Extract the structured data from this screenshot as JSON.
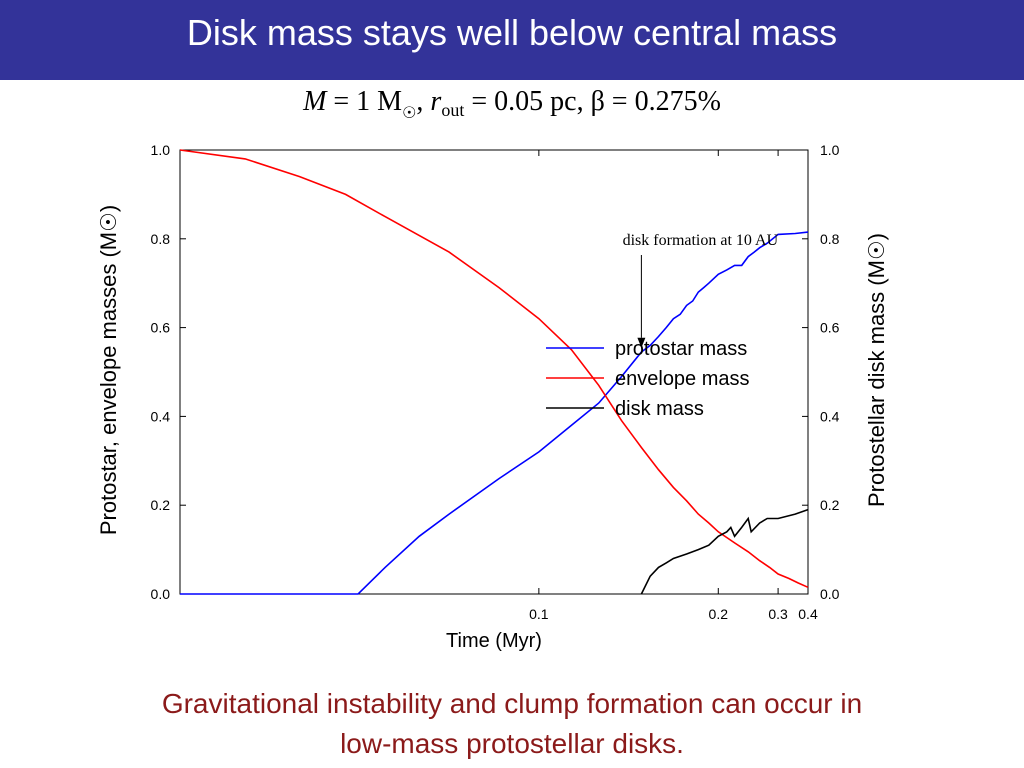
{
  "slide": {
    "title": "Disk mass stays well below central mass",
    "params": {
      "m_symbol": "M",
      "m_equals": " = 1 M",
      "sun_symbol": "☉",
      "r_symbol": "r",
      "r_sub": "out",
      "rest": " = 0.05 pc, β = 0.275%"
    },
    "caption_line1": "Gravitational instability and clump formation can occur in",
    "caption_line2": "low-mass protostellar disks.",
    "colors": {
      "title_bg": "#333399",
      "caption": "#8b1a1a"
    }
  },
  "chart_data": {
    "type": "line",
    "xlabel": "Time (Myr)",
    "ylabel_left": "Protostar, envelope masses (M☉)",
    "ylabel_right": "Protostellar disk mass (M☉)",
    "x_scale": "reciprocal",
    "xlim": [
      0.05,
      0.4
    ],
    "ylim": [
      0.0,
      1.0
    ],
    "x_ticks": [
      0.1,
      0.2,
      0.3,
      0.4
    ],
    "x_tick_labels": [
      "0.1",
      "0.2",
      "0.3",
      "0.4"
    ],
    "y_ticks": [
      0.0,
      0.2,
      0.4,
      0.6,
      0.8,
      1.0
    ],
    "y_tick_labels": [
      "0.0",
      "0.2",
      "0.4",
      "0.6",
      "0.8",
      "1.0"
    ],
    "grid": false,
    "legend_position": "center-right",
    "annotation": {
      "text": "disk formation at 10 AU",
      "x": 0.14,
      "y": 0.55
    },
    "series": [
      {
        "name": "protostar mass",
        "color": "#0000ff",
        "x": [
          0.05,
          0.0665,
          0.07,
          0.075,
          0.08,
          0.09,
          0.1,
          0.11,
          0.12,
          0.13,
          0.14,
          0.145,
          0.15,
          0.155,
          0.16,
          0.165,
          0.17,
          0.175,
          0.18,
          0.185,
          0.19,
          0.2,
          0.21,
          0.22,
          0.23,
          0.24,
          0.25,
          0.26,
          0.275,
          0.3,
          0.35,
          0.4
        ],
        "y": [
          0.0,
          0.0,
          0.06,
          0.13,
          0.18,
          0.26,
          0.32,
          0.38,
          0.43,
          0.49,
          0.545,
          0.56,
          0.58,
          0.6,
          0.62,
          0.63,
          0.65,
          0.66,
          0.68,
          0.69,
          0.7,
          0.72,
          0.73,
          0.74,
          0.74,
          0.76,
          0.77,
          0.78,
          0.79,
          0.81,
          0.812,
          0.815
        ]
      },
      {
        "name": "envelope mass",
        "color": "#ff0000",
        "x": [
          0.05,
          0.055,
          0.06,
          0.065,
          0.07,
          0.08,
          0.09,
          0.1,
          0.11,
          0.12,
          0.13,
          0.14,
          0.15,
          0.16,
          0.17,
          0.18,
          0.19,
          0.2,
          0.22,
          0.24,
          0.26,
          0.28,
          0.3,
          0.33,
          0.36,
          0.4
        ],
        "y": [
          1.0,
          0.98,
          0.94,
          0.9,
          0.85,
          0.77,
          0.69,
          0.62,
          0.55,
          0.47,
          0.39,
          0.33,
          0.28,
          0.24,
          0.21,
          0.18,
          0.16,
          0.14,
          0.115,
          0.095,
          0.075,
          0.06,
          0.045,
          0.035,
          0.025,
          0.015
        ]
      },
      {
        "name": "disk mass",
        "color": "#000000",
        "x": [
          0.14,
          0.145,
          0.15,
          0.155,
          0.16,
          0.17,
          0.18,
          0.19,
          0.2,
          0.21,
          0.215,
          0.22,
          0.23,
          0.24,
          0.245,
          0.26,
          0.275,
          0.3,
          0.35,
          0.4
        ],
        "y": [
          0.0,
          0.04,
          0.06,
          0.07,
          0.08,
          0.09,
          0.1,
          0.11,
          0.13,
          0.14,
          0.15,
          0.13,
          0.15,
          0.17,
          0.14,
          0.16,
          0.17,
          0.17,
          0.18,
          0.19
        ]
      }
    ]
  }
}
